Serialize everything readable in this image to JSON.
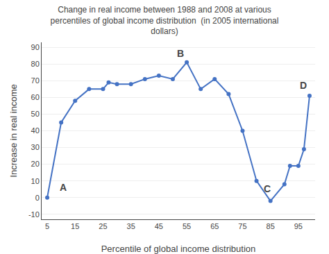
{
  "chart_data": {
    "type": "line",
    "title": "Change in real income between 1988 and 2008 at various\npercentiles of global income distribution  (in 2005 international\ndollars)",
    "x_label": "Percentile of global income distribution",
    "y_label": "Increase in real income",
    "x": [
      5,
      10,
      15,
      20,
      25,
      27,
      30,
      35,
      40,
      45,
      50,
      55,
      60,
      65,
      70,
      75,
      80,
      85,
      90,
      92,
      95,
      97,
      99
    ],
    "values": [
      0,
      45,
      58,
      65,
      65,
      69,
      68,
      68,
      71,
      73,
      71,
      81,
      65,
      71,
      62,
      40,
      10,
      -2,
      8,
      19,
      19,
      29,
      61
    ],
    "color": "#4472C4",
    "marker": "circle",
    "xlim": [
      3,
      101
    ],
    "xticks": [
      5,
      15,
      25,
      35,
      45,
      55,
      65,
      75,
      85,
      95
    ],
    "ylim": [
      -13,
      93
    ],
    "yticks": [
      -10,
      0,
      10,
      20,
      30,
      40,
      50,
      60,
      70,
      80,
      90
    ],
    "grid": "y",
    "annotations": [
      {
        "text": "A",
        "x": 9,
        "y": 2
      },
      {
        "text": "B",
        "x": 51,
        "y": 82
      },
      {
        "text": "C",
        "x": 82,
        "y": 1
      },
      {
        "text": "D",
        "x": 95,
        "y": 63
      }
    ]
  }
}
